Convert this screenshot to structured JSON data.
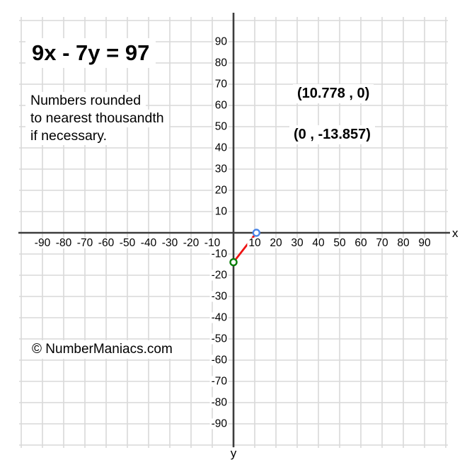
{
  "chart_data": {
    "type": "line",
    "title": "9x - 7y = 97",
    "note_lines": [
      "Numbers rounded",
      "to nearest thousandth",
      "if necessary."
    ],
    "copyright": "© NumberManiacs.com",
    "axis": {
      "x_label": "x",
      "y_label": "y",
      "x_range": [
        -100,
        100
      ],
      "y_range": [
        -100,
        100
      ],
      "grid_step": 10,
      "grid": true,
      "x_ticks": [
        -90,
        -80,
        -70,
        -60,
        -50,
        -40,
        -30,
        -20,
        -10,
        10,
        20,
        30,
        40,
        50,
        60,
        70,
        80,
        90
      ],
      "y_ticks": [
        90,
        80,
        70,
        60,
        50,
        40,
        30,
        20,
        10,
        -10,
        -20,
        -30,
        -40,
        -50,
        -60,
        -70,
        -80,
        -90
      ]
    },
    "series": [
      {
        "name": "segment-between-intercepts",
        "points": [
          [
            0,
            -13.857
          ],
          [
            10.778,
            0
          ]
        ],
        "color": "#ee1111"
      }
    ],
    "points": [
      {
        "name": "x-intercept",
        "x": 10.778,
        "y": 0,
        "label": "(10.778 , 0)",
        "color": "#4a86e8"
      },
      {
        "name": "y-intercept",
        "x": 0,
        "y": -13.857,
        "label": "(0 , -13.857)",
        "color": "#0a7e0a"
      }
    ],
    "colors": {
      "background": "#ffffff",
      "grid": "#d9d9d9",
      "axis": "#3d3d3d",
      "text": "#000000",
      "segment": "#ee1111",
      "x_intercept": "#4a86e8",
      "y_intercept": "#0a7e0a"
    }
  }
}
